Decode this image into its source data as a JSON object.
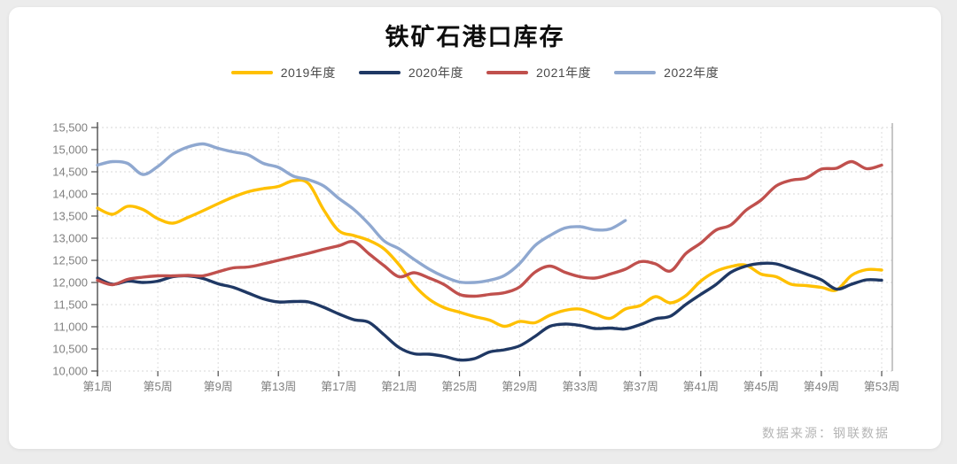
{
  "title": "铁矿石港口库存",
  "footer": "数据来源：钢联数据",
  "legend": [
    {
      "label": "2019年度",
      "color": "#FFC000"
    },
    {
      "label": "2020年度",
      "color": "#1F3864"
    },
    {
      "label": "2021年度",
      "color": "#C0504D"
    },
    {
      "label": "2022年度",
      "color": "#8FA8D0"
    }
  ],
  "chart_data": {
    "type": "line",
    "title": "铁矿石港口库存",
    "xlabel": "周",
    "ylabel": "",
    "ylim": [
      10000,
      15500
    ],
    "y_tick_step": 500,
    "x_weeks": [
      1,
      53
    ],
    "grid": "dashed",
    "legend_position": "top",
    "y_ticks": [
      {
        "value": 10000,
        "label": "10,000"
      },
      {
        "value": 10500,
        "label": "10,500"
      },
      {
        "value": 11000,
        "label": "11,000"
      },
      {
        "value": 11500,
        "label": "11,500"
      },
      {
        "value": 12000,
        "label": "12,000"
      },
      {
        "value": 12500,
        "label": "12,500"
      },
      {
        "value": 13000,
        "label": "13,000"
      },
      {
        "value": 13500,
        "label": "13,500"
      },
      {
        "value": 14000,
        "label": "14,000"
      },
      {
        "value": 14500,
        "label": "14,500"
      },
      {
        "value": 15000,
        "label": "15,000"
      },
      {
        "value": 15500,
        "label": "15,500"
      }
    ],
    "x_ticks": [
      {
        "week": 1,
        "label": "第1周"
      },
      {
        "week": 5,
        "label": "第5周"
      },
      {
        "week": 9,
        "label": "第9周"
      },
      {
        "week": 13,
        "label": "第13周"
      },
      {
        "week": 17,
        "label": "第17周"
      },
      {
        "week": 21,
        "label": "第21周"
      },
      {
        "week": 25,
        "label": "第25周"
      },
      {
        "week": 29,
        "label": "第29周"
      },
      {
        "week": 33,
        "label": "第33周"
      },
      {
        "week": 37,
        "label": "第37周"
      },
      {
        "week": 41,
        "label": "第41周"
      },
      {
        "week": 45,
        "label": "第45周"
      },
      {
        "week": 49,
        "label": "第49周"
      },
      {
        "week": 53,
        "label": "第53周"
      }
    ],
    "series": [
      {
        "name": "2019年度",
        "color": "#FFC000",
        "start_week": 1,
        "values": [
          13680,
          13540,
          13720,
          13650,
          13440,
          13340,
          13470,
          13620,
          13780,
          13930,
          14050,
          14120,
          14170,
          14300,
          14230,
          13640,
          13170,
          13060,
          12950,
          12760,
          12400,
          11940,
          11620,
          11430,
          11330,
          11230,
          11150,
          11010,
          11120,
          11090,
          11260,
          11370,
          11400,
          11290,
          11190,
          11400,
          11480,
          11680,
          11540,
          11700,
          12030,
          12250,
          12360,
          12390,
          12190,
          12130,
          11960,
          11930,
          11890,
          11830,
          12160,
          12290,
          12280
        ]
      },
      {
        "name": "2020年度",
        "color": "#1F3864",
        "start_week": 1,
        "values": [
          12100,
          11960,
          12030,
          12000,
          12030,
          12130,
          12150,
          12090,
          11970,
          11890,
          11760,
          11630,
          11560,
          11570,
          11560,
          11440,
          11290,
          11160,
          11100,
          10820,
          10530,
          10390,
          10380,
          10330,
          10250,
          10280,
          10430,
          10480,
          10570,
          10780,
          11010,
          11060,
          11030,
          10960,
          10970,
          10950,
          11050,
          11180,
          11240,
          11500,
          11730,
          11950,
          12230,
          12370,
          12430,
          12420,
          12310,
          12190,
          12060,
          11850,
          11960,
          12060,
          12050
        ]
      },
      {
        "name": "2021年度",
        "color": "#C0504D",
        "start_week": 1,
        "values": [
          12050,
          11950,
          12070,
          12120,
          12150,
          12150,
          12160,
          12150,
          12240,
          12330,
          12350,
          12420,
          12500,
          12580,
          12660,
          12750,
          12830,
          12920,
          12650,
          12380,
          12130,
          12220,
          12100,
          11950,
          11730,
          11690,
          11730,
          11770,
          11900,
          12230,
          12370,
          12230,
          12130,
          12100,
          12190,
          12300,
          12470,
          12420,
          12260,
          12650,
          12890,
          13180,
          13300,
          13630,
          13860,
          14180,
          14310,
          14360,
          14560,
          14580,
          14730,
          14570,
          14650
        ]
      },
      {
        "name": "2022年度",
        "color": "#8FA8D0",
        "start_week": 1,
        "values": [
          14650,
          14730,
          14690,
          14440,
          14620,
          14900,
          15060,
          15130,
          15030,
          14950,
          14880,
          14690,
          14600,
          14400,
          14320,
          14180,
          13900,
          13650,
          13320,
          12940,
          12760,
          12520,
          12300,
          12130,
          12010,
          12000,
          12050,
          12160,
          12430,
          12830,
          13060,
          13230,
          13260,
          13190,
          13210,
          13400
        ]
      }
    ]
  }
}
